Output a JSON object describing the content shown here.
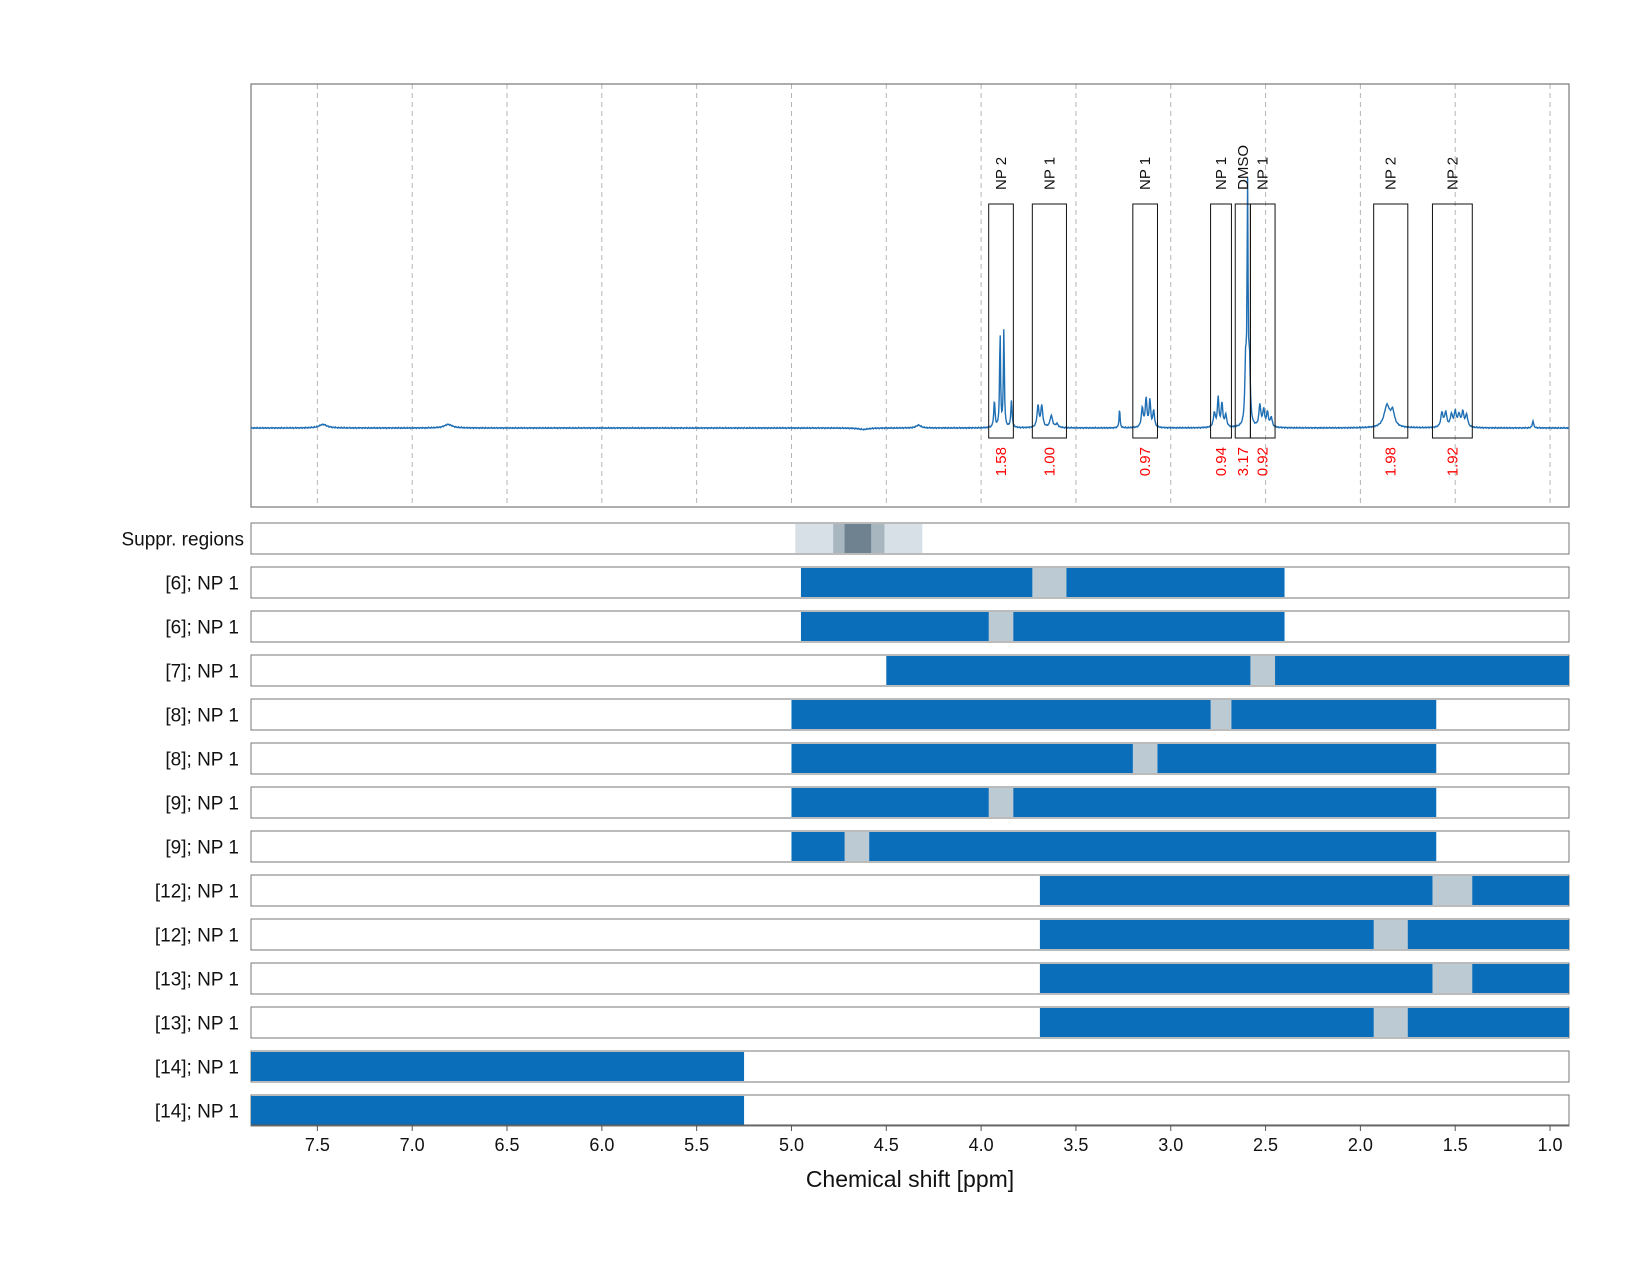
{
  "chart_data": {
    "type": "line",
    "xlabel": "Chemical shift [ppm]",
    "xlim": [
      7.85,
      0.9
    ],
    "reversed_x_axis": true,
    "grid": "vertical dashed",
    "x_ticks": [
      7.5,
      7.0,
      6.5,
      6.0,
      5.5,
      5.0,
      4.5,
      4.0,
      3.5,
      3.0,
      2.5,
      2.0,
      1.5,
      1.0
    ],
    "x_tick_labels": [
      "7.5",
      "7.0",
      "6.5",
      "6.0",
      "5.5",
      "5.0",
      "4.5",
      "4.0",
      "3.5",
      "3.0",
      "2.5",
      "2.0",
      "1.5",
      "1.0"
    ],
    "colors": {
      "spectrum": "#1f6fb4",
      "bar": "#0a6ebb",
      "gap": "#bccad3",
      "integral_label": "#ff0000",
      "suppr_light": "#d7e0e6",
      "suppr_mid": "#a8b6c0",
      "suppr_dark": "#6f8290",
      "grid": "#b5b5b5"
    },
    "spectrum": {
      "baseline": 0,
      "peaks": [
        {
          "ppm": 7.47,
          "height": 0.015,
          "width": 0.025
        },
        {
          "ppm": 6.81,
          "height": 0.015,
          "width": 0.025
        },
        {
          "ppm": 4.62,
          "height": -0.006,
          "width": 0.03
        },
        {
          "ppm": 4.33,
          "height": 0.012,
          "width": 0.015
        },
        {
          "ppm": 3.93,
          "height": 0.11,
          "width": 0.004
        },
        {
          "ppm": 3.9,
          "height": 0.4,
          "width": 0.003
        },
        {
          "ppm": 3.88,
          "height": 0.41,
          "width": 0.003
        },
        {
          "ppm": 3.84,
          "height": 0.11,
          "width": 0.004
        },
        {
          "ppm": 3.7,
          "height": 0.09,
          "width": 0.006
        },
        {
          "ppm": 3.68,
          "height": 0.09,
          "width": 0.006
        },
        {
          "ppm": 3.63,
          "height": 0.05,
          "width": 0.008
        },
        {
          "ppm": 3.6,
          "height": 0.015,
          "width": 0.008
        },
        {
          "ppm": 3.27,
          "height": 0.08,
          "width": 0.003
        },
        {
          "ppm": 3.15,
          "height": 0.08,
          "width": 0.006
        },
        {
          "ppm": 3.13,
          "height": 0.12,
          "width": 0.005
        },
        {
          "ppm": 3.11,
          "height": 0.11,
          "width": 0.005
        },
        {
          "ppm": 3.09,
          "height": 0.07,
          "width": 0.005
        },
        {
          "ppm": 2.77,
          "height": 0.06,
          "width": 0.006
        },
        {
          "ppm": 2.75,
          "height": 0.12,
          "width": 0.005
        },
        {
          "ppm": 2.73,
          "height": 0.1,
          "width": 0.005
        },
        {
          "ppm": 2.71,
          "height": 0.05,
          "width": 0.006
        },
        {
          "ppm": 2.595,
          "height": 0.95,
          "width": 0.003
        },
        {
          "ppm": 2.605,
          "height": 0.25,
          "width": 0.005
        },
        {
          "ppm": 2.585,
          "height": 0.25,
          "width": 0.005
        },
        {
          "ppm": 2.53,
          "height": 0.09,
          "width": 0.006
        },
        {
          "ppm": 2.51,
          "height": 0.07,
          "width": 0.006
        },
        {
          "ppm": 2.49,
          "height": 0.06,
          "width": 0.006
        },
        {
          "ppm": 2.47,
          "height": 0.04,
          "width": 0.006
        },
        {
          "ppm": 1.86,
          "height": 0.09,
          "width": 0.018
        },
        {
          "ppm": 1.83,
          "height": 0.06,
          "width": 0.012
        },
        {
          "ppm": 1.57,
          "height": 0.06,
          "width": 0.007
        },
        {
          "ppm": 1.55,
          "height": 0.06,
          "width": 0.007
        },
        {
          "ppm": 1.52,
          "height": 0.05,
          "width": 0.007
        },
        {
          "ppm": 1.5,
          "height": 0.06,
          "width": 0.007
        },
        {
          "ppm": 1.48,
          "height": 0.05,
          "width": 0.007
        },
        {
          "ppm": 1.46,
          "height": 0.06,
          "width": 0.007
        },
        {
          "ppm": 1.44,
          "height": 0.05,
          "width": 0.007
        },
        {
          "ppm": 1.09,
          "height": 0.03,
          "width": 0.004
        }
      ]
    },
    "regions": [
      {
        "label": "NP 2",
        "ppm_start": 3.96,
        "ppm_end": 3.83,
        "integral": "1.58"
      },
      {
        "label": "NP 1",
        "ppm_start": 3.73,
        "ppm_end": 3.55,
        "integral": "1.00"
      },
      {
        "label": "NP 1",
        "ppm_start": 3.2,
        "ppm_end": 3.07,
        "integral": "0.97"
      },
      {
        "label": "NP 1",
        "ppm_start": 2.79,
        "ppm_end": 2.68,
        "integral": "0.94"
      },
      {
        "label": "DMSO",
        "ppm_start": 2.66,
        "ppm_end": 2.58,
        "integral": "3.17"
      },
      {
        "label": "NP 1",
        "ppm_start": 2.58,
        "ppm_end": 2.45,
        "integral": "0.92"
      },
      {
        "label": "NP 2",
        "ppm_start": 1.93,
        "ppm_end": 1.75,
        "integral": "1.98"
      },
      {
        "label": "NP 2",
        "ppm_start": 1.62,
        "ppm_end": 1.41,
        "integral": "1.92"
      }
    ],
    "suppr_row": {
      "label": "Suppr. regions",
      "bands": [
        {
          "ppm_start": 4.98,
          "ppm_end": 4.31,
          "shade": "light"
        },
        {
          "ppm_start": 4.78,
          "ppm_end": 4.51,
          "shade": "mid"
        },
        {
          "ppm_start": 4.72,
          "ppm_end": 4.58,
          "shade": "dark"
        }
      ]
    },
    "rows": [
      {
        "label": "[6]; NP 1",
        "ppm_start": 4.95,
        "ppm_end": 2.4,
        "gap_start": 3.73,
        "gap_end": 3.55
      },
      {
        "label": "[6]; NP 1",
        "ppm_start": 4.95,
        "ppm_end": 2.4,
        "gap_start": 3.96,
        "gap_end": 3.83
      },
      {
        "label": "[7]; NP 1",
        "ppm_start": 4.5,
        "ppm_end": 0.9,
        "gap_start": 2.58,
        "gap_end": 2.45
      },
      {
        "label": "[8]; NP 1",
        "ppm_start": 5.0,
        "ppm_end": 1.6,
        "gap_start": 2.79,
        "gap_end": 2.68
      },
      {
        "label": "[8]; NP 1",
        "ppm_start": 5.0,
        "ppm_end": 1.6,
        "gap_start": 3.2,
        "gap_end": 3.07
      },
      {
        "label": "[9]; NP 1",
        "ppm_start": 5.0,
        "ppm_end": 1.6,
        "gap_start": 3.96,
        "gap_end": 3.83
      },
      {
        "label": "[9]; NP 1",
        "ppm_start": 5.0,
        "ppm_end": 1.6,
        "gap_start": 4.72,
        "gap_end": 4.59
      },
      {
        "label": "[12]; NP 1",
        "ppm_start": 3.69,
        "ppm_end": 0.9,
        "gap_start": 1.62,
        "gap_end": 1.41
      },
      {
        "label": "[12]; NP 1",
        "ppm_start": 3.69,
        "ppm_end": 0.9,
        "gap_start": 1.93,
        "gap_end": 1.75
      },
      {
        "label": "[13]; NP 1",
        "ppm_start": 3.69,
        "ppm_end": 0.9,
        "gap_start": 1.62,
        "gap_end": 1.41
      },
      {
        "label": "[13]; NP 1",
        "ppm_start": 3.69,
        "ppm_end": 0.9,
        "gap_start": 1.93,
        "gap_end": 1.75
      },
      {
        "label": "[14]; NP 1",
        "ppm_start": 7.85,
        "ppm_end": 5.25,
        "gap_start": null,
        "gap_end": null
      },
      {
        "label": "[14]; NP 1",
        "ppm_start": 7.85,
        "ppm_end": 5.25,
        "gap_start": null,
        "gap_end": null
      }
    ]
  }
}
